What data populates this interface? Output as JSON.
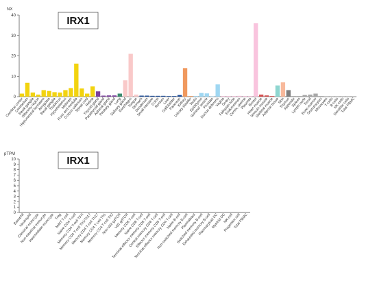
{
  "chart_data": [
    {
      "type": "bar",
      "title": "IRX1",
      "ylabel": "NX",
      "ylim": [
        0,
        40
      ],
      "yticks": [
        0,
        10,
        20,
        30,
        40
      ],
      "grid": false,
      "categories": [
        "Cerebral cortex",
        "Cerebellum",
        "Basal ganglia",
        "Olfactory region",
        "Hippocampal formation",
        "Amygdala",
        "Basal ganglia",
        "Thalamus",
        "Hypothalamus",
        "Midbrain",
        "Pons and medulla",
        "Corpus callosum",
        "Spinal cord",
        "Retina",
        "Thyroid gland",
        "Parathyroid gland",
        "Adrenal gland",
        "Pituitary gland",
        "Lung",
        "Salivary gland",
        "Esophagus",
        "Tongue",
        "Stomach",
        "Duodenum",
        "Small intestine",
        "Colon",
        "Rectum",
        "Liver",
        "Gallbladder",
        "Pancreas",
        "Kidney",
        "Urinary bladder",
        "Testis",
        "Epididymis",
        "Seminal vesicle",
        "Prostate",
        "Ductus deferens",
        "Vagina",
        "Ovary",
        "Fallopian tube",
        "Endometrium",
        "Cervix, uterine",
        "Placenta",
        "Breast",
        "Heart muscle",
        "Smooth muscle",
        "Skeletal muscle",
        "Adipose tissue",
        "Skin",
        "Thymus",
        "Appendix",
        "Spleen",
        "Lymph node",
        "Tonsil",
        "Bone marrow",
        "Granulocytes",
        "Monocytes",
        "T-cells",
        "B-cells",
        "NK-cells",
        "Dendritic cells",
        "Total PBMC"
      ],
      "values": [
        1.5,
        6.8,
        2.0,
        1.0,
        3.2,
        2.8,
        2.2,
        2.0,
        3.2,
        4.2,
        16.2,
        4.0,
        1.5,
        5.0,
        2.6,
        0.5,
        0.6,
        0.6,
        1.5,
        8.0,
        21.0,
        1.0,
        0.5,
        0.5,
        0.4,
        0.4,
        0.4,
        0.3,
        0.3,
        0.8,
        14.0,
        0.3,
        0.3,
        1.8,
        1.6,
        0.2,
        6.0,
        0.3,
        0.3,
        0.3,
        0.4,
        0.3,
        0.3,
        36.0,
        1.0,
        0.6,
        0.3,
        5.5,
        7.0,
        3.2,
        0.3,
        0.3,
        0.8,
        1.0,
        1.5,
        0.3,
        0.2,
        0.2,
        0.2,
        0.2,
        0.2,
        0.2
      ],
      "colors": [
        "#f2d30f",
        "#f2d30f",
        "#f2d30f",
        "#f2d30f",
        "#f2d30f",
        "#f2d30f",
        "#f2d30f",
        "#f2d30f",
        "#f2d30f",
        "#f2d30f",
        "#f2d30f",
        "#f2d30f",
        "#f2d30f",
        "#f2d30f",
        "#7b3f9e",
        "#7b3f9e",
        "#7b3f9e",
        "#7b3f9e",
        "#3b8a6e",
        "#f9c9c9",
        "#f9c9c9",
        "#f9c9c9",
        "#1f4e9a",
        "#1f4e9a",
        "#1f4e9a",
        "#1f4e9a",
        "#1f4e9a",
        "#1f4e9a",
        "#1f4e9a",
        "#1f4e9a",
        "#f0995e",
        "#f0995e",
        "#9fd7f2",
        "#9fd7f2",
        "#9fd7f2",
        "#9fd7f2",
        "#9fd7f2",
        "#f9c4de",
        "#f9c4de",
        "#f9c4de",
        "#f9c4de",
        "#f9c4de",
        "#f9c4de",
        "#f9c4de",
        "#d64f4f",
        "#d64f4f",
        "#d64f4f",
        "#8fd6d0",
        "#f8b99b",
        "#7f7f7f",
        "#a8a8a8",
        "#a8a8a8",
        "#a8a8a8",
        "#a8a8a8",
        "#a8a8a8",
        "#a8a8a8",
        "#a8a8a8",
        "#a8a8a8",
        "#a8a8a8",
        "#a8a8a8",
        "#a8a8a8",
        "#a8a8a8"
      ]
    },
    {
      "type": "bar",
      "title": "IRX1",
      "ylabel": "pTPM",
      "ylim": [
        0,
        10
      ],
      "yticks": [
        0,
        1,
        2,
        3,
        4,
        5,
        6,
        7,
        8,
        9,
        10
      ],
      "grid": false,
      "categories": [
        "Basophil",
        "Neutrophil",
        "Classical monocyte",
        "Non-classical monocyte",
        "Intermediate monocyte",
        "Treg",
        "MAIT T-cell",
        "Naive CD4 T-cell",
        "Memory CD4 T-cell TFH",
        "Memory CD4 T-cell Th1/Th17",
        "Memory CD4 T-cell Th17",
        "Memory CD4 T-cell Th1",
        "Memory CD4 T-cell Th2",
        "Non-Vd2 gdTCR",
        "Vd2 gdTCR",
        "Memory CD8 T-cell",
        "Naive CD8 T-cell",
        "Terminal effector memory CD8 T-cell",
        "Central memory CD8 T-cell",
        "Effector memory CD8 T-cell",
        "Terminal effector memory CD4 T-cell",
        "Naive B-cell",
        "Non-switched memory B-cell",
        "Plasmablast",
        "Switched memory B-cell",
        "Exhausted memory B-cell",
        "Plasmacytoid DC",
        "Myeloid DC",
        "NK-cell",
        "Progenitor cell",
        "Total PBMC"
      ],
      "values": [
        0,
        0,
        0,
        0,
        0,
        0,
        0,
        0,
        0,
        0,
        0,
        0,
        0,
        0,
        0,
        0,
        0,
        0,
        0,
        0,
        0,
        0,
        0,
        0,
        0,
        0,
        0,
        0,
        0,
        0,
        0
      ]
    }
  ],
  "colors": {
    "axis": "#444444",
    "text": "#333333"
  }
}
